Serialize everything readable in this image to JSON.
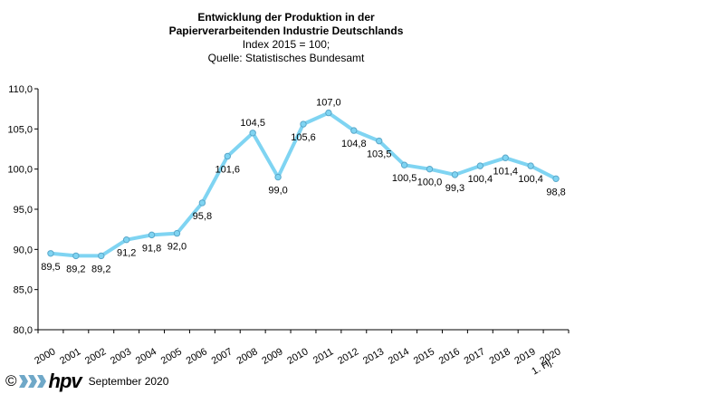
{
  "chart_data": {
    "type": "line",
    "title_lines": [
      "Entwicklung der Produktion in der",
      "Papierverarbeitenden Industrie Deutschlands"
    ],
    "subtitle_lines": [
      "Index 2015 = 100;",
      "Quelle: Statistisches Bundesamt"
    ],
    "categories": [
      "2000",
      "2001",
      "2002",
      "2003",
      "2004",
      "2005",
      "2006",
      "2007",
      "2008",
      "2009",
      "2010",
      "2011",
      "2012",
      "2013",
      "2014",
      "2015",
      "2016",
      "2017",
      "2018",
      "2019",
      "2020"
    ],
    "last_category_extra": "1. Hj.",
    "values": [
      89.5,
      89.2,
      89.2,
      91.2,
      91.8,
      92.0,
      95.8,
      101.6,
      104.5,
      99.0,
      105.6,
      107.0,
      104.8,
      103.5,
      100.5,
      100.0,
      99.3,
      100.4,
      101.4,
      100.4,
      98.8
    ],
    "value_labels": [
      "89,5",
      "89,2",
      "89,2",
      "91,2",
      "91,8",
      "92,0",
      "95,8",
      "101,6",
      "104,5",
      "99,0",
      "105,6",
      "107,0",
      "104,8",
      "103,5",
      "100,5",
      "100,0",
      "99,3",
      "100,4",
      "101,4",
      "100,4",
      "98,8"
    ],
    "label_above": [
      false,
      false,
      false,
      false,
      false,
      false,
      false,
      false,
      true,
      false,
      false,
      true,
      false,
      false,
      false,
      false,
      false,
      false,
      false,
      false,
      false
    ],
    "ylim": [
      80,
      110
    ],
    "yticks": [
      80,
      85,
      90,
      95,
      100,
      105,
      110
    ],
    "ytick_labels": [
      "80,0",
      "85,0",
      "90,0",
      "95,0",
      "100,0",
      "105,0",
      "110,0"
    ],
    "xlabel": "",
    "ylabel": "",
    "grid": false,
    "line_color": "#7fd4f2",
    "marker_color": "#7fd4f2",
    "marker_edge": "#5aa7c9"
  },
  "footer": {
    "copyright": "©",
    "brand": "hpv",
    "date": "September 2020",
    "logo_color": "#6fa8c8"
  }
}
